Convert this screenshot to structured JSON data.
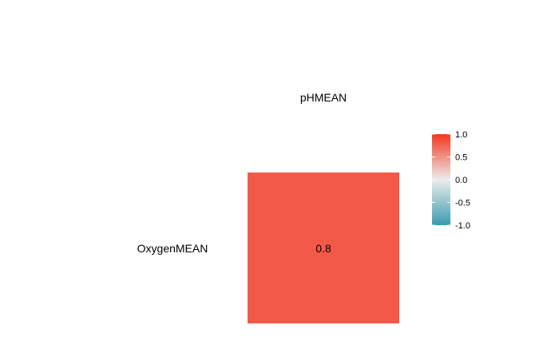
{
  "chart_data": {
    "type": "heatmap",
    "title": "",
    "x_categories": [
      "pHMEAN"
    ],
    "y_categories": [
      "OxygenMEAN"
    ],
    "cells": [
      {
        "x": "pHMEAN",
        "y": "OxygenMEAN",
        "value": 0.8,
        "label": "0.8"
      }
    ],
    "colorbar": {
      "range": [
        -1.0,
        1.0
      ],
      "ticks": [
        1.0,
        0.5,
        0.0,
        -0.5,
        -1.0
      ],
      "tick_labels": [
        "1.0",
        "0.5",
        "0.0",
        "-0.5",
        "-1.0"
      ],
      "colors": {
        "low": "#3a9bb0",
        "mid": "#ececec",
        "high": "#f4361e"
      }
    },
    "legend_position": "right",
    "grid": false
  }
}
